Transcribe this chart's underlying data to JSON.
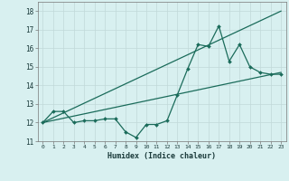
{
  "xlabel": "Humidex (Indice chaleur)",
  "bg_color": "#d8f0f0",
  "line_color": "#1a6b5a",
  "grid_color": "#c0d8d8",
  "line1_x": [
    0,
    1,
    2,
    3,
    4,
    5,
    6,
    7,
    8,
    9,
    10,
    11,
    12,
    13,
    14,
    15,
    16,
    17,
    18,
    19,
    20,
    21,
    22,
    23
  ],
  "line1_y": [
    12.0,
    12.6,
    12.6,
    12.0,
    12.1,
    12.1,
    12.2,
    12.2,
    11.5,
    11.2,
    11.9,
    11.9,
    12.1,
    13.5,
    14.9,
    16.2,
    16.1,
    17.2,
    15.3,
    16.2,
    15.0,
    14.7,
    14.6,
    14.6
  ],
  "line2_x": [
    0,
    23
  ],
  "line2_y": [
    12.0,
    14.7
  ],
  "line3_x": [
    0,
    23
  ],
  "line3_y": [
    12.0,
    18.0
  ],
  "xlim": [
    -0.5,
    23.5
  ],
  "ylim": [
    11.0,
    18.5
  ],
  "yticks": [
    11,
    12,
    13,
    14,
    15,
    16,
    17,
    18
  ],
  "xticks": [
    0,
    1,
    2,
    3,
    4,
    5,
    6,
    7,
    8,
    9,
    10,
    11,
    12,
    13,
    14,
    15,
    16,
    17,
    18,
    19,
    20,
    21,
    22,
    23
  ],
  "xtick_labels": [
    "0",
    "1",
    "2",
    "3",
    "4",
    "5",
    "6",
    "7",
    "8",
    "9",
    "10",
    "11",
    "12",
    "13",
    "14",
    "15",
    "16",
    "17",
    "18",
    "19",
    "20",
    "21",
    "22",
    "23"
  ]
}
